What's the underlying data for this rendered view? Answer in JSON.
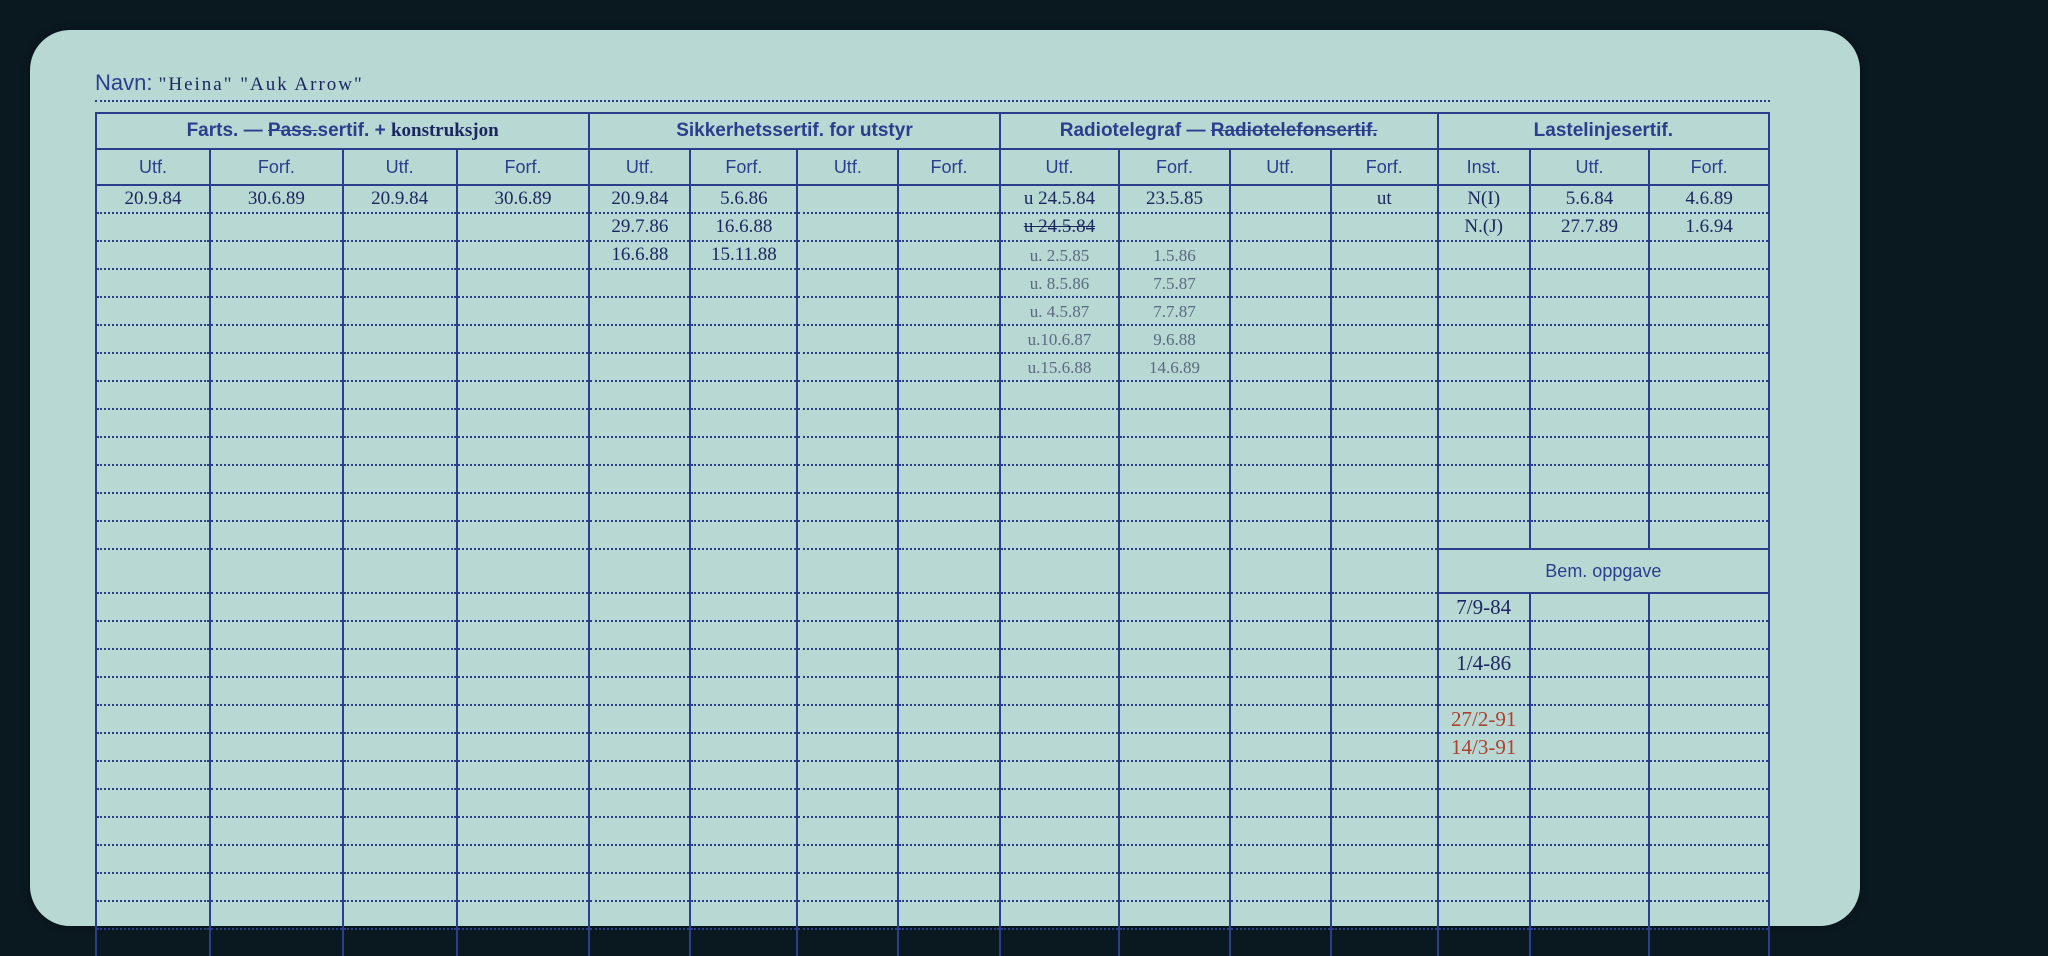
{
  "navn_label": "Navn:",
  "navn_value": "\"Heina\" \"Auk Arrow\"",
  "headers": {
    "group1": "Farts. — ",
    "group1_strike": "Pass.",
    "group1_after": "sertif. +",
    "group1_annot": "konstruksjon",
    "group2": "Sikkerhetssertif. for utstyr",
    "group3_a": "Radiotelegraf — ",
    "group3_strike": "Radiotelefonsertif.",
    "group4": "Lastelinjesertif.",
    "utf": "Utf.",
    "forf": "Forf.",
    "inst": "Inst."
  },
  "bem_label": "Bem. oppgave",
  "rows": [
    {
      "c": [
        "20.9.84",
        "30.6.89",
        "20.9.84",
        "30.6.89",
        "20.9.84",
        "5.6.86",
        "",
        "",
        "u 24.5.84",
        "23.5.85",
        "",
        "ut",
        "N(I)",
        "5.6.84",
        "4.6.89"
      ]
    },
    {
      "c": [
        "",
        "",
        "",
        "",
        "29.7.86",
        "16.6.88",
        "",
        "",
        "u  24.5.84",
        "",
        "",
        "",
        "N.(J)",
        "27.7.89",
        "1.6.94"
      ],
      "strike_col": 8
    },
    {
      "c": [
        "",
        "",
        "",
        "",
        "16.6.88",
        "15.11.88",
        "",
        "",
        "u. 2.5.85",
        "1.5.86",
        "",
        "",
        "",
        "",
        ""
      ]
    },
    {
      "c": [
        "",
        "",
        "",
        "",
        "",
        "",
        "",
        "",
        "u. 8.5.86",
        "7.5.87",
        "",
        "",
        "",
        "",
        ""
      ]
    },
    {
      "c": [
        "",
        "",
        "",
        "",
        "",
        "",
        "",
        "",
        "u. 4.5.87",
        "7.7.87",
        "",
        "",
        "",
        "",
        ""
      ]
    },
    {
      "c": [
        "",
        "",
        "",
        "",
        "",
        "",
        "",
        "",
        "u.10.6.87",
        "9.6.88",
        "",
        "",
        "",
        "",
        ""
      ]
    },
    {
      "c": [
        "",
        "",
        "",
        "",
        "",
        "",
        "",
        "",
        "u.15.6.88",
        "14.6.89",
        "",
        "",
        "",
        "",
        ""
      ]
    },
    {
      "c": [
        "",
        "",
        "",
        "",
        "",
        "",
        "",
        "",
        "",
        "",
        "",
        "",
        "",
        "",
        ""
      ]
    },
    {
      "c": [
        "",
        "",
        "",
        "",
        "",
        "",
        "",
        "",
        "",
        "",
        "",
        "",
        "",
        "",
        ""
      ]
    },
    {
      "c": [
        "",
        "",
        "",
        "",
        "",
        "",
        "",
        "",
        "",
        "",
        "",
        "",
        "",
        "",
        ""
      ]
    },
    {
      "c": [
        "",
        "",
        "",
        "",
        "",
        "",
        "",
        "",
        "",
        "",
        "",
        "",
        "",
        "",
        ""
      ]
    },
    {
      "c": [
        "",
        "",
        "",
        "",
        "",
        "",
        "",
        "",
        "",
        "",
        "",
        "",
        "",
        "",
        ""
      ]
    },
    {
      "c": [
        "",
        "",
        "",
        "",
        "",
        "",
        "",
        "",
        "",
        "",
        "",
        "",
        "",
        "",
        ""
      ]
    }
  ],
  "bem_rows": [
    "7/9-84",
    "",
    "1/4-86",
    "",
    "27/2-91",
    "14/3-91",
    "",
    "",
    ""
  ],
  "bem_colors": [
    "#1a2860",
    "#1a2860",
    "#1a2860",
    "#1a2860",
    "#b04030",
    "#b04030",
    "#1a2860",
    "#1a2860",
    "#1a2860"
  ],
  "empty_main_rows": 9,
  "colors": {
    "card_bg": "#b8d8d4",
    "line": "#2a3e8c",
    "ink": "#1a2860",
    "red": "#b04030",
    "gray": "#5a6a80"
  }
}
